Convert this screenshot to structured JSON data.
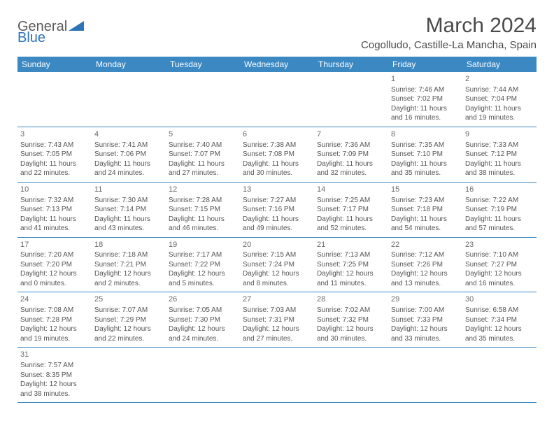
{
  "logo": {
    "name": "General",
    "accent": "Blue"
  },
  "title": "March 2024",
  "location": "Cogolludo, Castille-La Mancha, Spain",
  "colors": {
    "header_bg": "#3b88c3",
    "header_text": "#ffffff",
    "border": "#3b88c3",
    "text": "#555555",
    "title": "#4a4a4a",
    "logo_gray": "#5a5a5a",
    "logo_blue": "#2d73b8"
  },
  "weekdays": [
    "Sunday",
    "Monday",
    "Tuesday",
    "Wednesday",
    "Thursday",
    "Friday",
    "Saturday"
  ],
  "weeks": [
    [
      null,
      null,
      null,
      null,
      null,
      {
        "n": "1",
        "sr": "7:46 AM",
        "ss": "7:02 PM",
        "dl": "11 hours and 16 minutes."
      },
      {
        "n": "2",
        "sr": "7:44 AM",
        "ss": "7:04 PM",
        "dl": "11 hours and 19 minutes."
      }
    ],
    [
      {
        "n": "3",
        "sr": "7:43 AM",
        "ss": "7:05 PM",
        "dl": "11 hours and 22 minutes."
      },
      {
        "n": "4",
        "sr": "7:41 AM",
        "ss": "7:06 PM",
        "dl": "11 hours and 24 minutes."
      },
      {
        "n": "5",
        "sr": "7:40 AM",
        "ss": "7:07 PM",
        "dl": "11 hours and 27 minutes."
      },
      {
        "n": "6",
        "sr": "7:38 AM",
        "ss": "7:08 PM",
        "dl": "11 hours and 30 minutes."
      },
      {
        "n": "7",
        "sr": "7:36 AM",
        "ss": "7:09 PM",
        "dl": "11 hours and 32 minutes."
      },
      {
        "n": "8",
        "sr": "7:35 AM",
        "ss": "7:10 PM",
        "dl": "11 hours and 35 minutes."
      },
      {
        "n": "9",
        "sr": "7:33 AM",
        "ss": "7:12 PM",
        "dl": "11 hours and 38 minutes."
      }
    ],
    [
      {
        "n": "10",
        "sr": "7:32 AM",
        "ss": "7:13 PM",
        "dl": "11 hours and 41 minutes."
      },
      {
        "n": "11",
        "sr": "7:30 AM",
        "ss": "7:14 PM",
        "dl": "11 hours and 43 minutes."
      },
      {
        "n": "12",
        "sr": "7:28 AM",
        "ss": "7:15 PM",
        "dl": "11 hours and 46 minutes."
      },
      {
        "n": "13",
        "sr": "7:27 AM",
        "ss": "7:16 PM",
        "dl": "11 hours and 49 minutes."
      },
      {
        "n": "14",
        "sr": "7:25 AM",
        "ss": "7:17 PM",
        "dl": "11 hours and 52 minutes."
      },
      {
        "n": "15",
        "sr": "7:23 AM",
        "ss": "7:18 PM",
        "dl": "11 hours and 54 minutes."
      },
      {
        "n": "16",
        "sr": "7:22 AM",
        "ss": "7:19 PM",
        "dl": "11 hours and 57 minutes."
      }
    ],
    [
      {
        "n": "17",
        "sr": "7:20 AM",
        "ss": "7:20 PM",
        "dl": "12 hours and 0 minutes."
      },
      {
        "n": "18",
        "sr": "7:18 AM",
        "ss": "7:21 PM",
        "dl": "12 hours and 2 minutes."
      },
      {
        "n": "19",
        "sr": "7:17 AM",
        "ss": "7:22 PM",
        "dl": "12 hours and 5 minutes."
      },
      {
        "n": "20",
        "sr": "7:15 AM",
        "ss": "7:24 PM",
        "dl": "12 hours and 8 minutes."
      },
      {
        "n": "21",
        "sr": "7:13 AM",
        "ss": "7:25 PM",
        "dl": "12 hours and 11 minutes."
      },
      {
        "n": "22",
        "sr": "7:12 AM",
        "ss": "7:26 PM",
        "dl": "12 hours and 13 minutes."
      },
      {
        "n": "23",
        "sr": "7:10 AM",
        "ss": "7:27 PM",
        "dl": "12 hours and 16 minutes."
      }
    ],
    [
      {
        "n": "24",
        "sr": "7:08 AM",
        "ss": "7:28 PM",
        "dl": "12 hours and 19 minutes."
      },
      {
        "n": "25",
        "sr": "7:07 AM",
        "ss": "7:29 PM",
        "dl": "12 hours and 22 minutes."
      },
      {
        "n": "26",
        "sr": "7:05 AM",
        "ss": "7:30 PM",
        "dl": "12 hours and 24 minutes."
      },
      {
        "n": "27",
        "sr": "7:03 AM",
        "ss": "7:31 PM",
        "dl": "12 hours and 27 minutes."
      },
      {
        "n": "28",
        "sr": "7:02 AM",
        "ss": "7:32 PM",
        "dl": "12 hours and 30 minutes."
      },
      {
        "n": "29",
        "sr": "7:00 AM",
        "ss": "7:33 PM",
        "dl": "12 hours and 33 minutes."
      },
      {
        "n": "30",
        "sr": "6:58 AM",
        "ss": "7:34 PM",
        "dl": "12 hours and 35 minutes."
      }
    ],
    [
      {
        "n": "31",
        "sr": "7:57 AM",
        "ss": "8:35 PM",
        "dl": "12 hours and 38 minutes."
      },
      null,
      null,
      null,
      null,
      null,
      null
    ]
  ],
  "labels": {
    "sunrise": "Sunrise:",
    "sunset": "Sunset:",
    "daylight": "Daylight:"
  }
}
